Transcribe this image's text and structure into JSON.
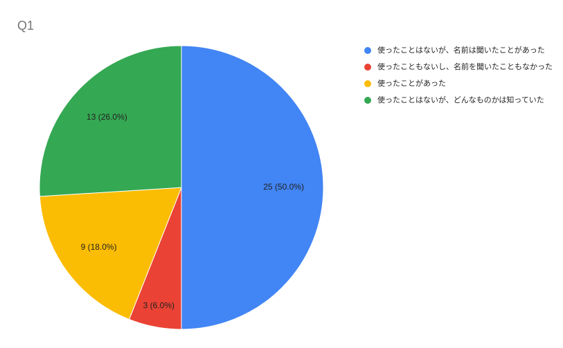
{
  "chart_data": {
    "type": "pie",
    "title": "Q1",
    "categories": [
      "使ったことはないが、名前は聞いたことがあった",
      "使ったこともないし、名前を聞いたこともなかった",
      "使ったことがあった",
      "使ったことはないが、どんなものかは知っていた"
    ],
    "values": [
      25,
      3,
      9,
      13
    ],
    "value_labels": [
      "25 (50.0%)",
      "3 (6.0%)",
      "9 (18.0%)",
      "13 (26.0%)"
    ],
    "colors": [
      "#4285f4",
      "#ea4335",
      "#fbbc04",
      "#34a853"
    ],
    "legend": "right"
  }
}
